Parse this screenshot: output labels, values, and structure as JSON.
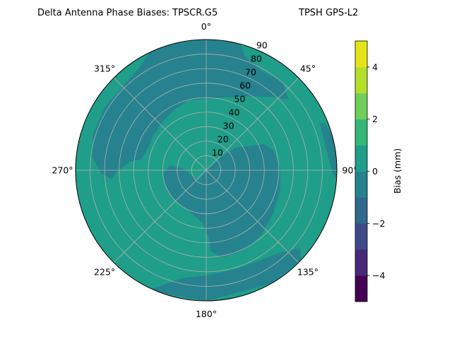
{
  "chart_data": {
    "type": "polar-contour",
    "title": "Delta Antenna Phase Biases: TPSCR.G5",
    "subtitle": "TPSH GPS-L2",
    "azimuth_labels": [
      "0°",
      "45°",
      "90°",
      "135°",
      "180°",
      "225°",
      "270°",
      "315°"
    ],
    "azimuth_direction": "clockwise",
    "azimuth_zero": "top",
    "radial_range": [
      0,
      90
    ],
    "radial_ticks": [
      10,
      20,
      30,
      40,
      50,
      60,
      70,
      80,
      90
    ],
    "radial_tick_labels": [
      "10",
      "20",
      "30",
      "40",
      "50",
      "60",
      "70",
      "80",
      "90"
    ],
    "grid": true,
    "colorbar": {
      "label": "Bias (mm)",
      "range": [
        -5,
        5
      ],
      "levels": [
        -5,
        -4,
        -3,
        -2,
        -1,
        0,
        1,
        2,
        3,
        4,
        5
      ],
      "ticks": [
        -4,
        -2,
        0,
        2,
        4
      ],
      "tick_labels": [
        "−4",
        "−2",
        "0",
        "2",
        "4"
      ],
      "colors": [
        "#440154",
        "#482878",
        "#3e4989",
        "#31688e",
        "#26828e",
        "#1f9e89",
        "#35b779",
        "#6ece58",
        "#b5de2b",
        "#e5e419"
      ],
      "colormap": "viridis"
    },
    "background_level": [
      0,
      1
    ],
    "regions": [
      {
        "level": [
          -1,
          0
        ],
        "points_az_zen": [
          [
            334,
            90
          ],
          [
            345,
            90
          ],
          [
            0,
            90
          ],
          [
            12,
            90
          ],
          [
            15,
            90
          ],
          [
            18.6,
            83.2
          ],
          [
            30.4,
            78.3
          ],
          [
            40.8,
            80.5
          ],
          [
            49.2,
            74.7
          ],
          [
            43.4,
            69.4
          ],
          [
            30.4,
            59
          ],
          [
            8.1,
            50.5
          ],
          [
            345.6,
            49.6
          ],
          [
            332,
            47
          ],
          [
            318,
            45
          ],
          [
            303,
            43.7
          ],
          [
            291.4,
            42.8
          ],
          [
            279.5,
            45.4
          ],
          [
            276.3,
            53.2
          ],
          [
            269.4,
            61
          ],
          [
            264.5,
            65.3
          ],
          [
            268.2,
            72.3
          ],
          [
            276.6,
            79.3
          ],
          [
            288,
            82
          ],
          [
            303,
            82.3
          ],
          [
            313.8,
            81
          ],
          [
            319.8,
            82
          ],
          [
            328.2,
            85
          ]
        ]
      },
      {
        "level": [
          -1,
          0
        ],
        "points_az_zen": [
          [
            48.8,
            13.8
          ],
          [
            52.2,
            25.4
          ],
          [
            65.6,
            43.5
          ],
          [
            73.2,
            48.1
          ],
          [
            87,
            51
          ],
          [
            105,
            52.7
          ],
          [
            122.9,
            54.9
          ],
          [
            139.4,
            58.5
          ],
          [
            150.5,
            60.4
          ],
          [
            160.7,
            60.8
          ],
          [
            170.2,
            60.8
          ],
          [
            176.8,
            55.9
          ],
          [
            178,
            46.1
          ],
          [
            184,
            36.4
          ],
          [
            207.6,
            30
          ],
          [
            232,
            30
          ],
          [
            250,
            30.4
          ],
          [
            265.5,
            29.5
          ],
          [
            277.7,
            25.5
          ],
          [
            273.7,
            15.6
          ],
          [
            219,
            9.2
          ],
          [
            41.5,
            3.5
          ]
        ]
      },
      {
        "level": [
          -1,
          0
        ],
        "points_az_zen": [
          [
            205,
            90
          ],
          [
            203.4,
            88.2
          ],
          [
            193,
            76.4
          ],
          [
            182,
            72.9
          ],
          [
            171.6,
            71.2
          ],
          [
            160.8,
            71.1
          ],
          [
            149.8,
            72.1
          ],
          [
            139.3,
            75.7
          ],
          [
            129.5,
            83.9
          ],
          [
            133.6,
            90
          ],
          [
            150,
            90
          ],
          [
            180,
            90
          ],
          [
            200,
            90
          ]
        ]
      },
      {
        "level": [
          -1,
          0
        ],
        "points_az_zen": [
          [
            67.9,
            84.7
          ],
          [
            68.3,
            88
          ],
          [
            75,
            90
          ],
          [
            85,
            90
          ],
          [
            94.6,
            90
          ],
          [
            90.4,
            86.6
          ],
          [
            79.3,
            84
          ]
        ]
      }
    ]
  }
}
